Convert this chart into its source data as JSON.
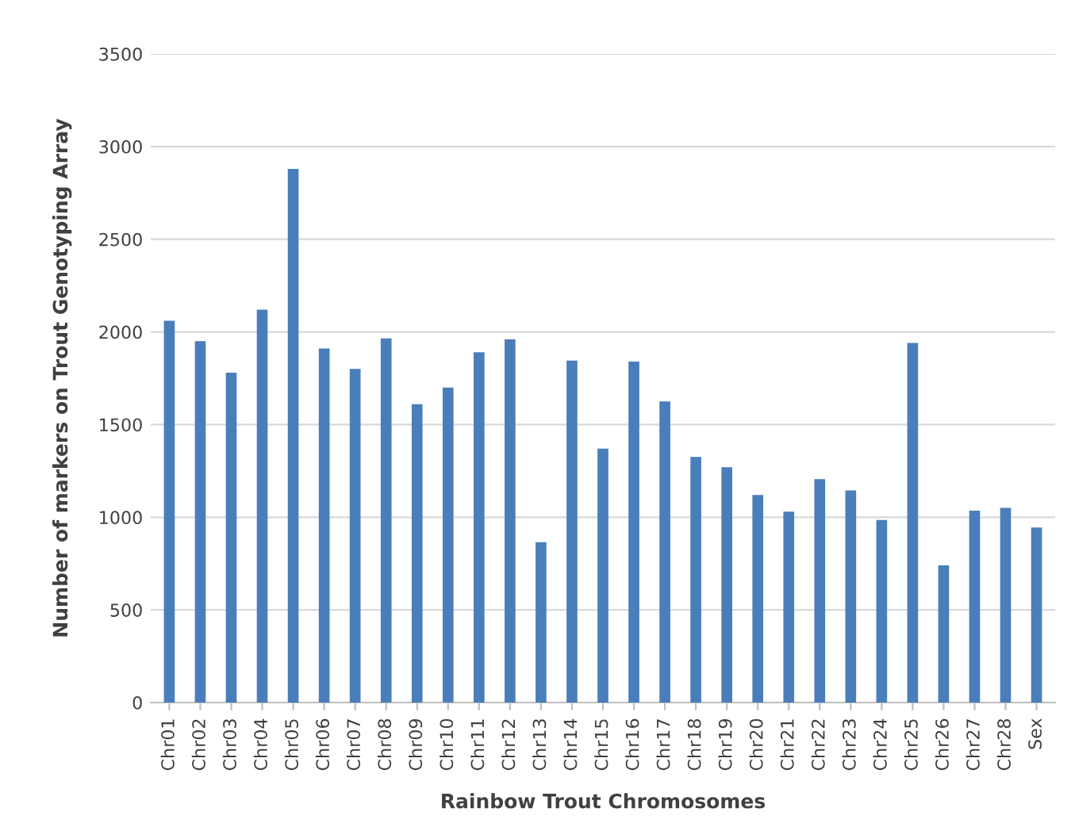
{
  "chart_data": {
    "type": "bar",
    "xlabel": "Rainbow Trout Chromosomes",
    "ylabel": "Number of markers on Trout Genotyping Array",
    "categories": [
      "Chr01",
      "Chr02",
      "Chr03",
      "Chr04",
      "Chr05",
      "Chr06",
      "Chr07",
      "Chr08",
      "Chr09",
      "Chr10",
      "Chr11",
      "Chr12",
      "Chr13",
      "Chr14",
      "Chr15",
      "Chr16",
      "Chr17",
      "Chr18",
      "Chr19",
      "Chr20",
      "Chr21",
      "Chr22",
      "Chr23",
      "Chr24",
      "Chr25",
      "Chr26",
      "Chr27",
      "Chr28",
      "Sex"
    ],
    "values": [
      2060,
      1950,
      1780,
      2120,
      2880,
      1910,
      1800,
      1965,
      1610,
      1700,
      1890,
      1960,
      865,
      1845,
      1370,
      1840,
      1625,
      1325,
      1270,
      1120,
      1030,
      1205,
      1145,
      985,
      1940,
      740,
      1035,
      1050,
      945
    ],
    "color": "#4a7ebb",
    "ylim": [
      0,
      3500
    ],
    "yticks": [
      0,
      500,
      1000,
      1500,
      2000,
      2500,
      3000,
      3500
    ],
    "grid": "y",
    "legend": false
  }
}
